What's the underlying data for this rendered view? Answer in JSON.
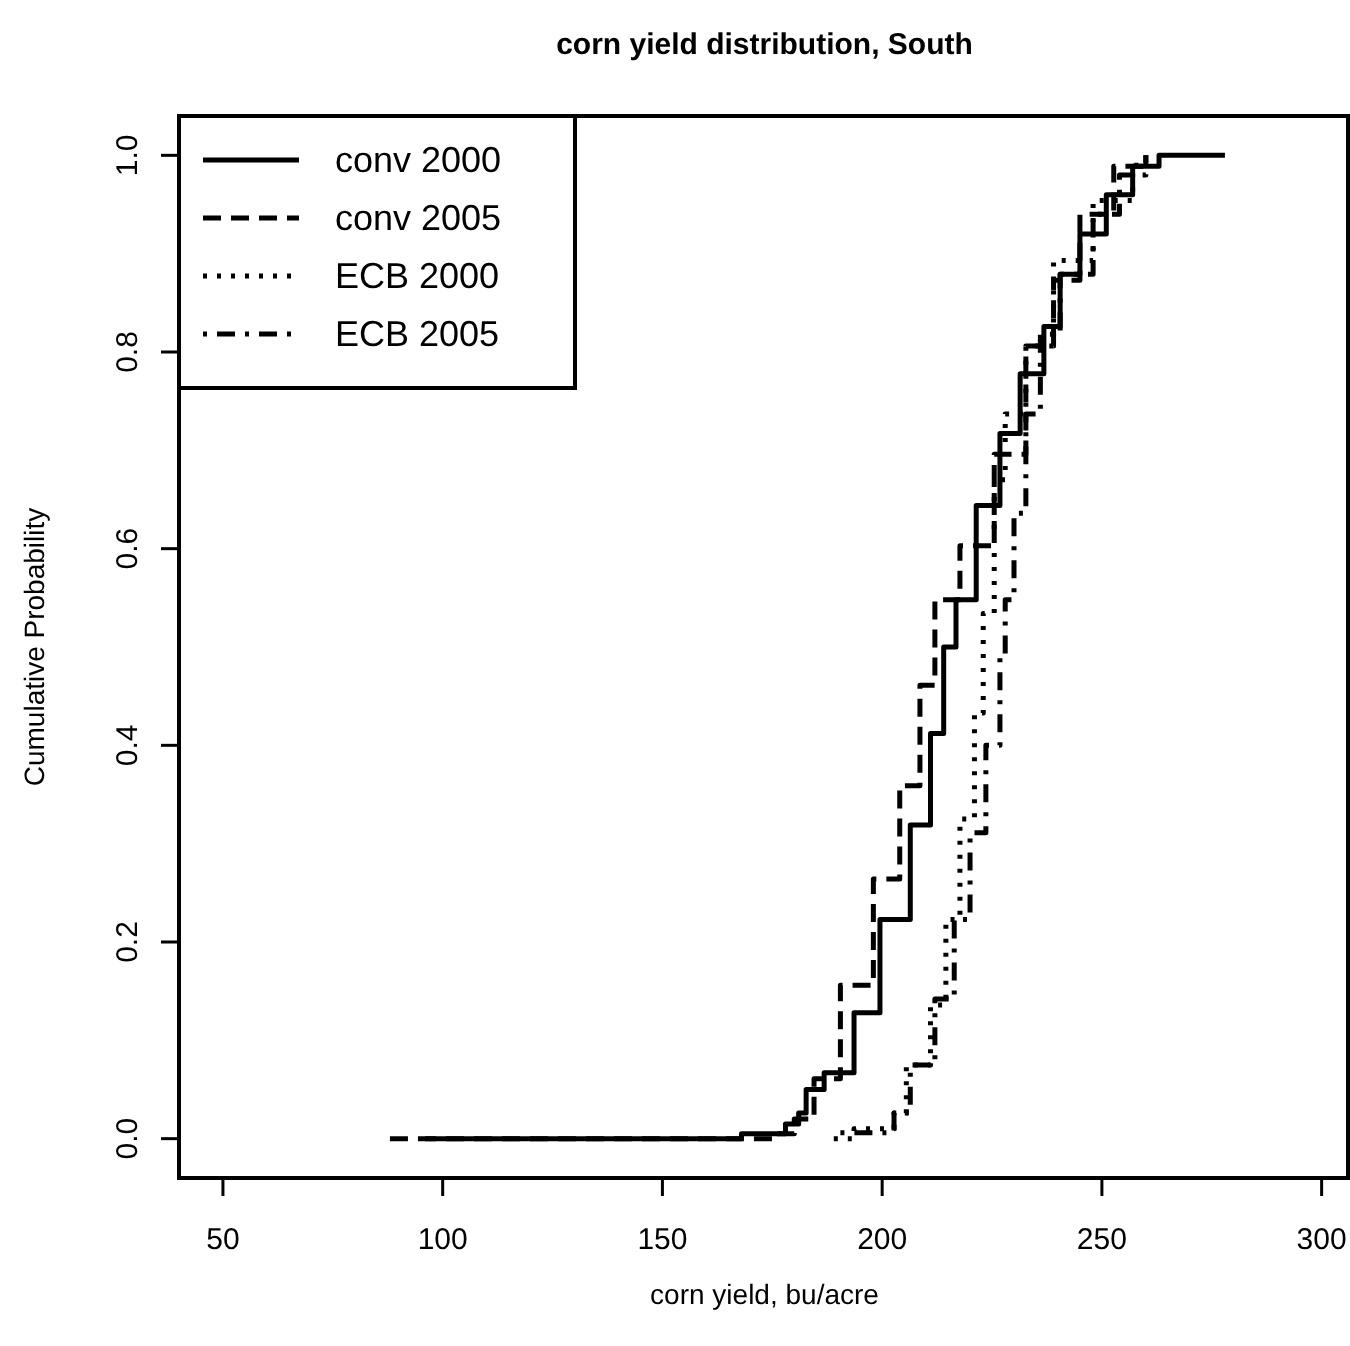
{
  "chart_data": {
    "type": "step",
    "title": "corn yield distribution, South",
    "xlabel": "corn yield, bu/acre",
    "ylabel": "Cumulative Probability",
    "xlim": [
      40,
      306
    ],
    "ylim": [
      -0.04,
      1.04
    ],
    "xticks": [
      50,
      100,
      150,
      200,
      250,
      300
    ],
    "yticks": [
      {
        "value": 0,
        "label": "0.0"
      },
      {
        "value": 0.2,
        "label": "0.2"
      },
      {
        "value": 0.4,
        "label": "0.4"
      },
      {
        "value": 0.6,
        "label": "0.6"
      },
      {
        "value": 0.8,
        "label": "0.8"
      },
      {
        "value": 1,
        "label": "1.0"
      }
    ],
    "legend": "top left",
    "grid": false,
    "marker": "none",
    "series": [
      {
        "name": "conv 2000",
        "color": "#000000",
        "line_style": "solid",
        "x": [
          96,
          168,
          178,
          181,
          182.7,
          186.8,
          193.6,
          199.5,
          206.4,
          211,
          214,
          216.8,
          221.4,
          226.8,
          231.4,
          236.8,
          240.5,
          245,
          251,
          257,
          263,
          278
        ],
        "values": [
          0,
          0.005,
          0.015,
          0.026,
          0.05,
          0.067,
          0.128,
          0.223,
          0.319,
          0.412,
          0.5,
          0.548,
          0.644,
          0.717,
          0.778,
          0.826,
          0.879,
          0.92,
          0.96,
          0.989,
          1,
          1
        ]
      },
      {
        "name": "conv 2005",
        "color": "#000000",
        "line_style": "dashed",
        "x": [
          88,
          175,
          180,
          184.5,
          190.5,
          198,
          204,
          208.6,
          212,
          217.7,
          225.5,
          232.7,
          239,
          245,
          252.7,
          260
        ],
        "values": [
          0,
          0.005,
          0.02,
          0.061,
          0.156,
          0.264,
          0.359,
          0.461,
          0.548,
          0.603,
          0.696,
          0.806,
          0.873,
          0.94,
          0.989,
          1
        ]
      },
      {
        "name": "ECB 2000",
        "color": "#000000",
        "line_style": "dotted",
        "x": [
          189,
          193.6,
          202.7,
          205.5,
          211,
          214.5,
          217.7,
          221,
          223,
          225.5,
          228,
          232.7,
          239,
          248,
          257,
          260
        ],
        "values": [
          0,
          0.01,
          0.026,
          0.075,
          0.136,
          0.223,
          0.325,
          0.433,
          0.534,
          0.67,
          0.737,
          0.806,
          0.893,
          0.954,
          0.99,
          1
        ]
      },
      {
        "name": "ECB 2005",
        "color": "#000000",
        "line_style": "dashdot",
        "x": [
          190.5,
          202.7,
          206.4,
          212,
          216.4,
          220,
          223.6,
          226.8,
          228,
          230,
          232.7,
          236,
          240.5,
          248,
          254,
          260
        ],
        "values": [
          0.006,
          0.026,
          0.075,
          0.142,
          0.223,
          0.311,
          0.4,
          0.493,
          0.548,
          0.636,
          0.737,
          0.818,
          0.879,
          0.94,
          0.98,
          1
        ]
      }
    ]
  }
}
